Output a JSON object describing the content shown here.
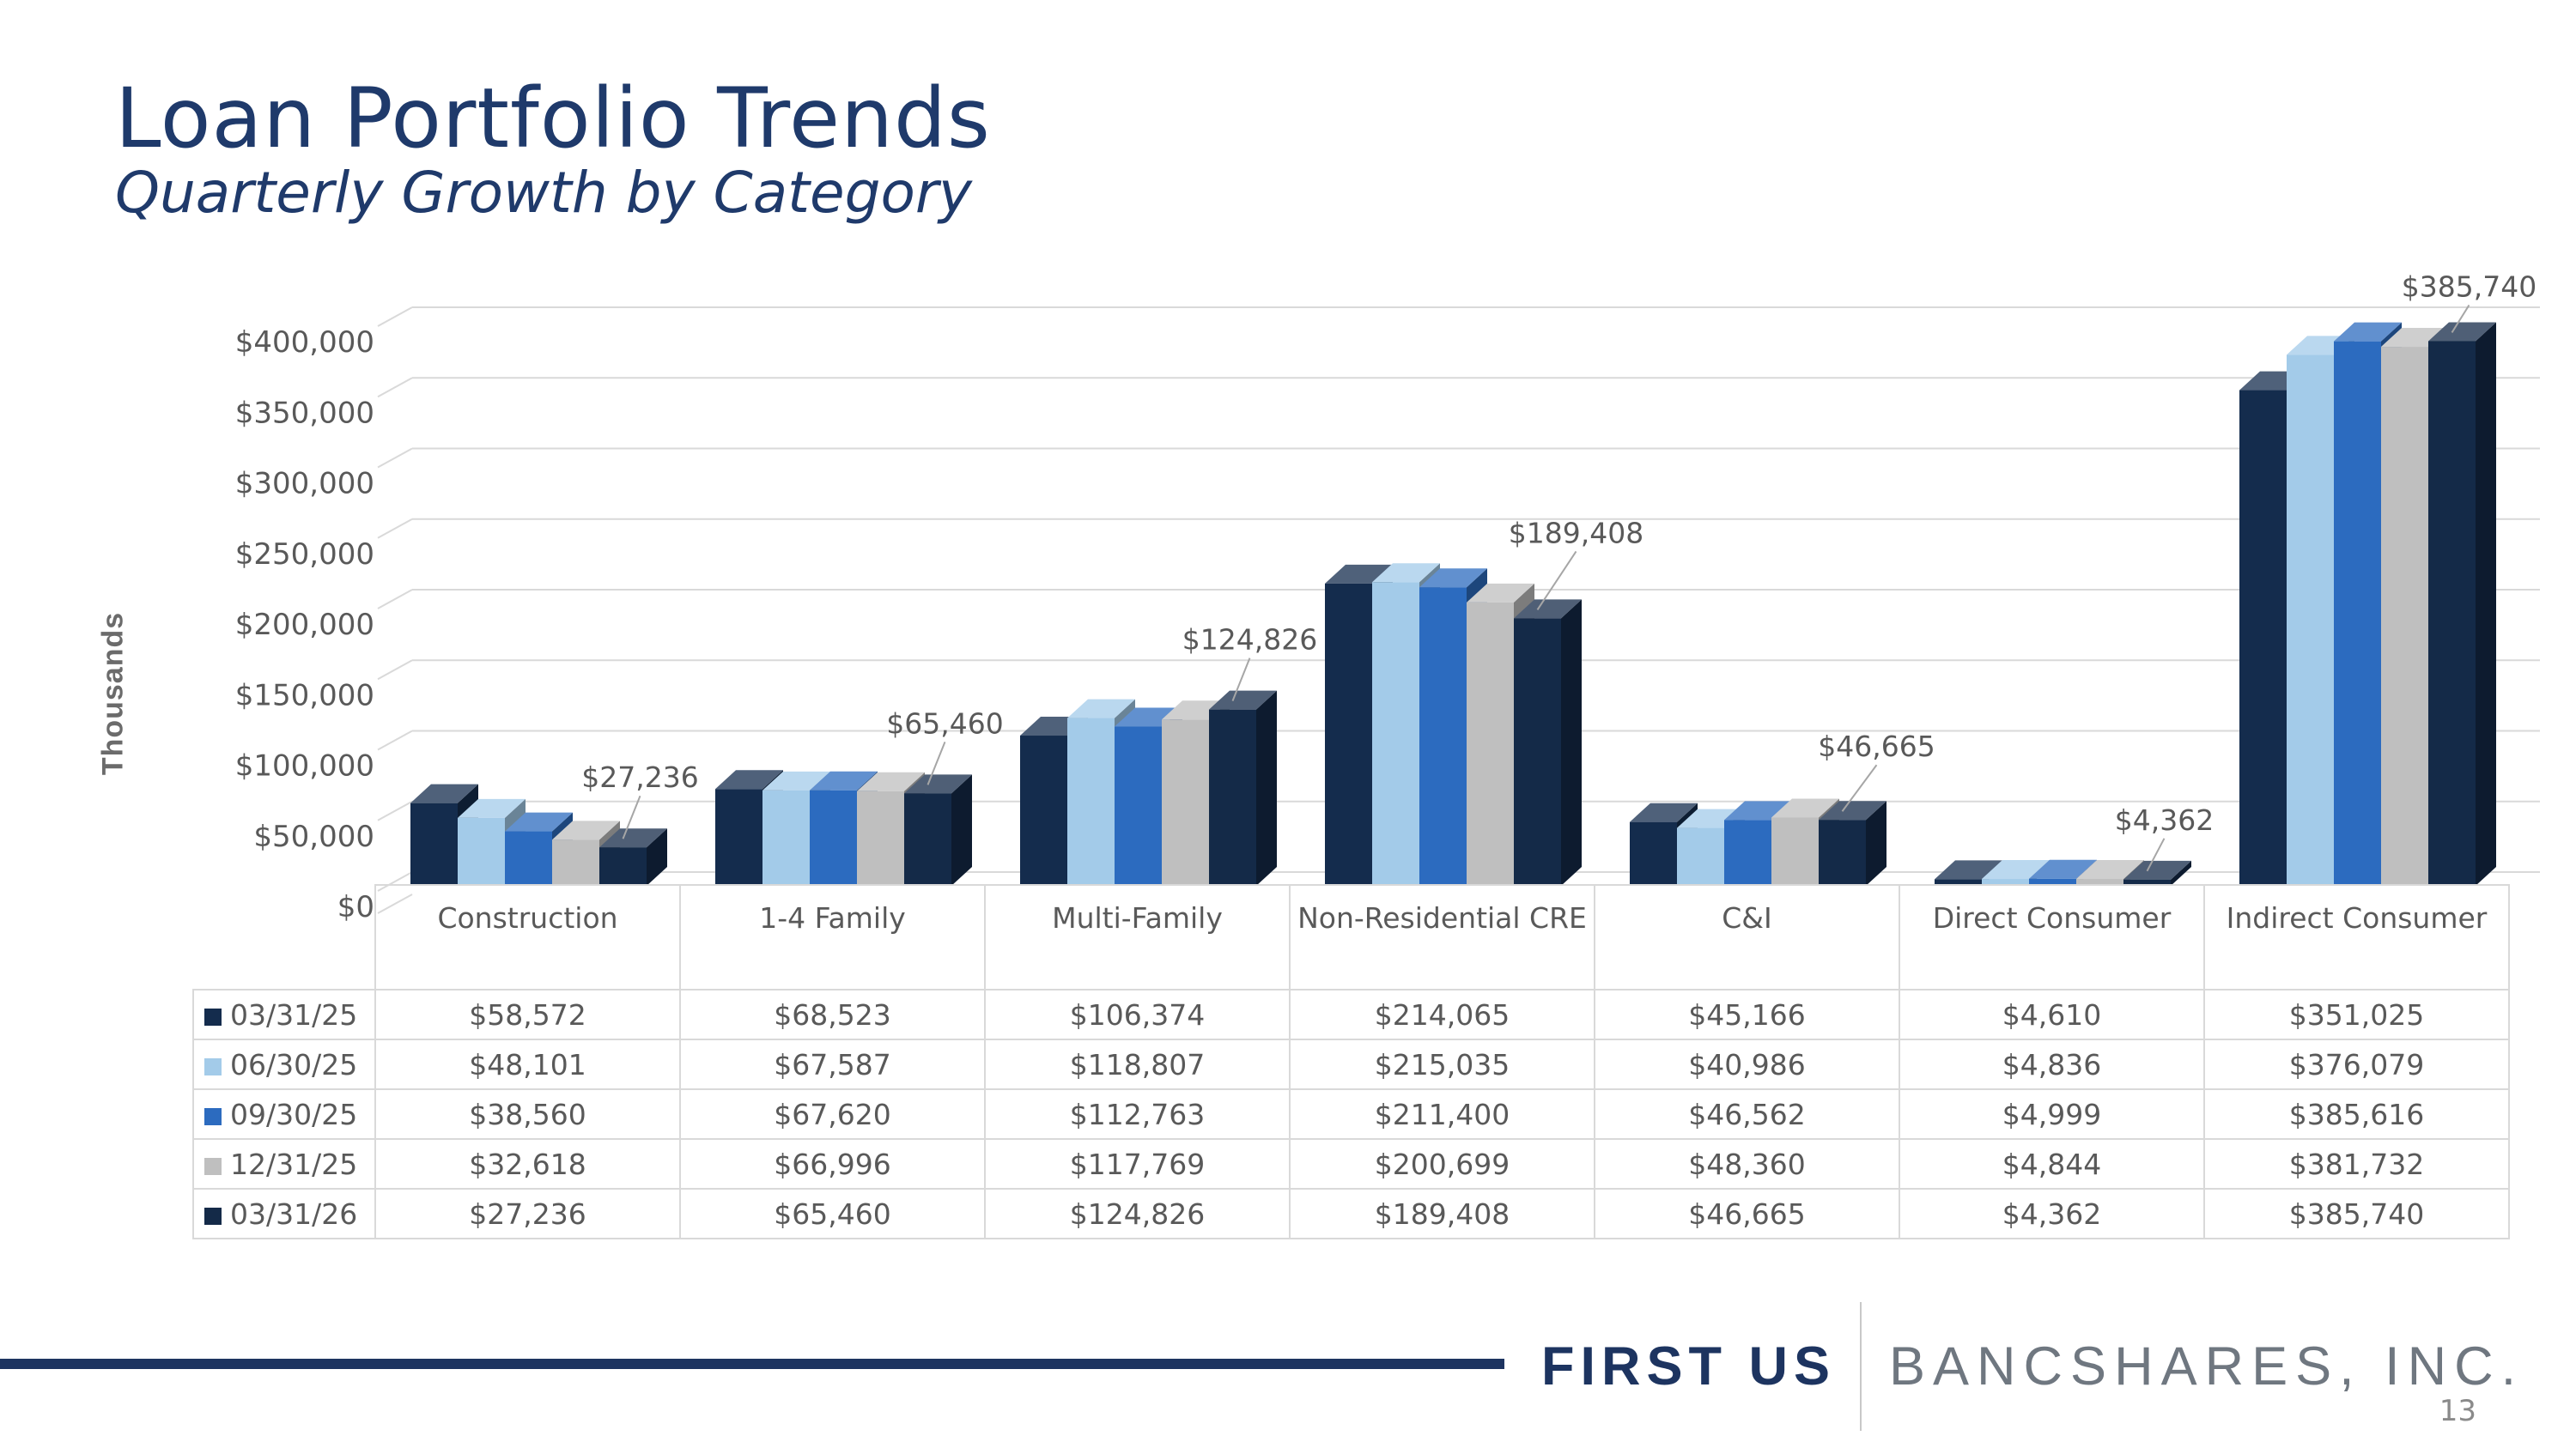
{
  "slide": {
    "title": "Loan Portfolio Trends",
    "subtitle": "Quarterly Growth by Category",
    "page_number": "13"
  },
  "logo": {
    "left_text": "FIRST US",
    "right_text": "BANCSHARES, INC."
  },
  "colors": {
    "title": "#1f3a6b",
    "footer_bar": "#1d3460",
    "axis_text": "#595959"
  },
  "chart_data": {
    "type": "bar",
    "style": "3d-clustered-column-with-data-table",
    "ylabel": "Thousands",
    "ylim": [
      0,
      400000
    ],
    "ytick_step": 50000,
    "ytick_labels": [
      "$0",
      "$50,000",
      "$100,000",
      "$150,000",
      "$200,000",
      "$250,000",
      "$300,000",
      "$350,000",
      "$400,000"
    ],
    "grid": true,
    "categories": [
      "Construction",
      "1-4 Family",
      "Multi-Family",
      "Non-Residential CRE",
      "C&I",
      "Direct Consumer",
      "Indirect Consumer"
    ],
    "series": [
      {
        "name": "03/31/25",
        "color": "#142c4d",
        "values": [
          58572,
          68523,
          106374,
          214065,
          45166,
          4610,
          351025
        ],
        "labels": [
          "$58,572",
          "$68,523",
          "$106,374",
          "$214,065",
          "$45,166",
          "$4,610",
          "$351,025"
        ]
      },
      {
        "name": "06/30/25",
        "color": "#a3cbe9",
        "values": [
          48101,
          67587,
          118807,
          215035,
          40986,
          4836,
          376079
        ],
        "labels": [
          "$48,101",
          "$67,587",
          "$118,807",
          "$215,035",
          "$40,986",
          "$4,836",
          "$376,079"
        ]
      },
      {
        "name": "09/30/25",
        "color": "#2c6bbf",
        "values": [
          38560,
          67620,
          112763,
          211400,
          46562,
          4999,
          385616
        ],
        "labels": [
          "$38,560",
          "$67,620",
          "$112,763",
          "$211,400",
          "$46,562",
          "$4,999",
          "$385,616"
        ]
      },
      {
        "name": "12/31/25",
        "color": "#bfbfbf",
        "values": [
          32618,
          66996,
          117769,
          200699,
          48360,
          4844,
          381732
        ],
        "labels": [
          "$32,618",
          "$66,996",
          "$117,769",
          "$200,699",
          "$48,360",
          "$4,844",
          "$381,732"
        ]
      },
      {
        "name": "03/31/26",
        "color": "#142a48",
        "values": [
          27236,
          65460,
          124826,
          189408,
          46665,
          4362,
          385740
        ],
        "labels": [
          "$27,236",
          "$65,460",
          "$124,826",
          "$189,408",
          "$46,665",
          "$4,362",
          "$385,740"
        ]
      }
    ],
    "data_labels": {
      "series_index": 4,
      "labels": [
        "$27,236",
        "$65,460",
        "$124,826",
        "$189,408",
        "$46,665",
        "$4,362",
        "$385,740"
      ]
    }
  }
}
